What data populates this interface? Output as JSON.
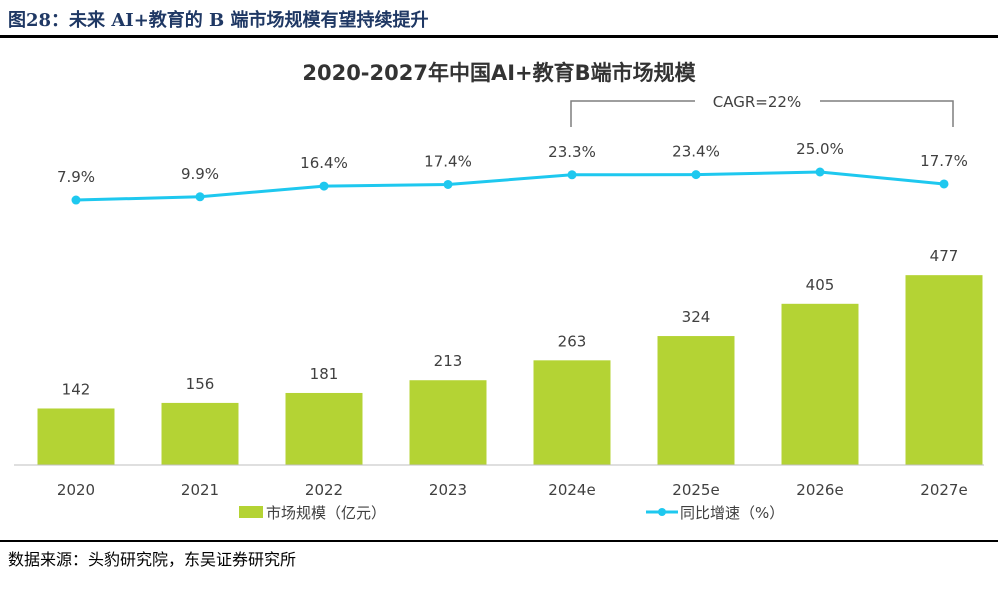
{
  "figure_title": "图28：未来 AI+教育的 B 端市场规模有望持续提升",
  "source": "数据来源：头豹研究院，东吴证券研究所",
  "chart_data": {
    "type": "bar",
    "title": "2020-2027年中国AI+教育B端市场规模",
    "categories": [
      "2020",
      "2021",
      "2022",
      "2023",
      "2024e",
      "2025e",
      "2026e",
      "2027e"
    ],
    "series": [
      {
        "name": "市场规模（亿元）",
        "type": "bar",
        "color": "#b4d334",
        "values": [
          142,
          156,
          181,
          213,
          263,
          324,
          405,
          477
        ],
        "labels": [
          "142",
          "156",
          "181",
          "213",
          "263",
          "324",
          "405",
          "477"
        ]
      },
      {
        "name": "同比增速（%）",
        "type": "line",
        "color": "#1ec8ef",
        "values": [
          7.9,
          9.9,
          16.4,
          17.4,
          23.3,
          23.4,
          25.0,
          17.7
        ],
        "labels": [
          "7.9%",
          "9.9%",
          "16.4%",
          "17.4%",
          "23.3%",
          "23.4%",
          "25.0%",
          "17.7%"
        ]
      }
    ],
    "annotation": "CAGR=22%",
    "legend": "bottom",
    "grid": false
  }
}
